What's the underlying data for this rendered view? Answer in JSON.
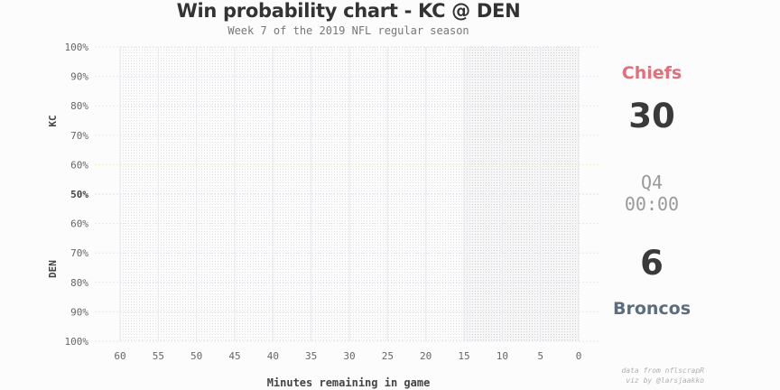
{
  "chart_data": {
    "type": "line",
    "title": "Win probability chart - KC @ DEN",
    "subtitle": "Week 7 of the 2019 NFL regular season",
    "xlabel": "Minutes remaining in game",
    "ylabel_top": "KC",
    "ylabel_bottom": "DEN",
    "x_ticks": [
      "60",
      "55",
      "50",
      "45",
      "40",
      "35",
      "30",
      "25",
      "20",
      "15",
      "10",
      "5",
      "0"
    ],
    "y_ticks": [
      "100%",
      "90%",
      "80%",
      "70%",
      "60%",
      "50%",
      "60%",
      "70%",
      "80%",
      "90%",
      "100%"
    ],
    "xlim": [
      60,
      0
    ],
    "grid": true,
    "series": []
  },
  "scoreboard": {
    "home_team": "Chiefs",
    "home_color": "#e0707a",
    "home_score": "30",
    "quarter": "Q4",
    "clock": "00:00",
    "away_score": "6",
    "away_team": "Broncos",
    "away_color": "#5a6e80"
  },
  "credits": {
    "line1": "data from nflscrapR",
    "line2": "viz by @larsjaakko"
  }
}
